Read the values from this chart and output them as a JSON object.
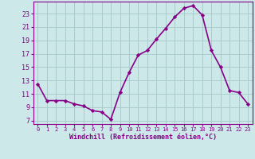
{
  "x": [
    0,
    1,
    2,
    3,
    4,
    5,
    6,
    7,
    8,
    9,
    10,
    11,
    12,
    13,
    14,
    15,
    16,
    17,
    18,
    19,
    20,
    21,
    22,
    23
  ],
  "y": [
    12.5,
    10.0,
    10.0,
    10.0,
    9.5,
    9.2,
    8.5,
    8.3,
    7.2,
    11.2,
    14.2,
    16.8,
    17.5,
    19.2,
    20.8,
    22.5,
    23.8,
    24.2,
    22.8,
    17.5,
    15.0,
    11.5,
    11.2,
    9.5
  ],
  "line_color": "#880088",
  "marker": "D",
  "marker_size": 2.2,
  "bg_color": "#cce8e8",
  "grid_color": "#aacccc",
  "xlabel": "Windchill (Refroidissement éolien,°C)",
  "xlim": [
    -0.5,
    23.5
  ],
  "ylim": [
    6.5,
    24.8
  ],
  "yticks": [
    7,
    9,
    11,
    13,
    15,
    17,
    19,
    21,
    23
  ],
  "xticks": [
    0,
    1,
    2,
    3,
    4,
    5,
    6,
    7,
    8,
    9,
    10,
    11,
    12,
    13,
    14,
    15,
    16,
    17,
    18,
    19,
    20,
    21,
    22,
    23
  ],
  "axis_color": "#880088",
  "tick_color": "#880088",
  "line_width": 1.2,
  "xlabel_fontsize": 6.0,
  "xtick_fontsize": 5.0,
  "ytick_fontsize": 6.0
}
